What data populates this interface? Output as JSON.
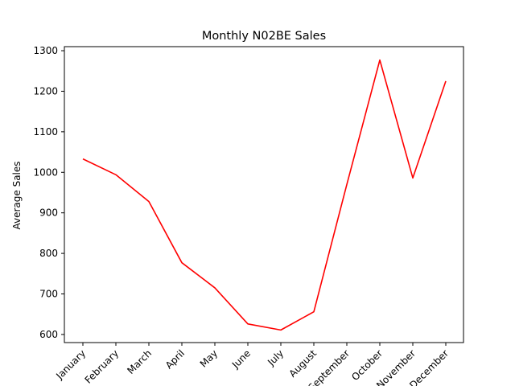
{
  "chart_data": {
    "type": "line",
    "title": "Monthly N02BE Sales",
    "xlabel": "",
    "ylabel": "Average Sales",
    "categories": [
      "January",
      "February",
      "March",
      "April",
      "May",
      "June",
      "July",
      "August",
      "September",
      "October",
      "November",
      "December"
    ],
    "series": [
      {
        "values": [
          1033,
          994,
          928,
          777,
          715,
          626,
          611,
          656,
          970,
          1277,
          986,
          1225
        ],
        "color": "#ff0000"
      }
    ],
    "ylim": [
      580,
      1310
    ],
    "yticks": [
      600,
      700,
      800,
      900,
      1000,
      1100,
      1200,
      1300
    ],
    "grid": false,
    "legend": "none"
  }
}
